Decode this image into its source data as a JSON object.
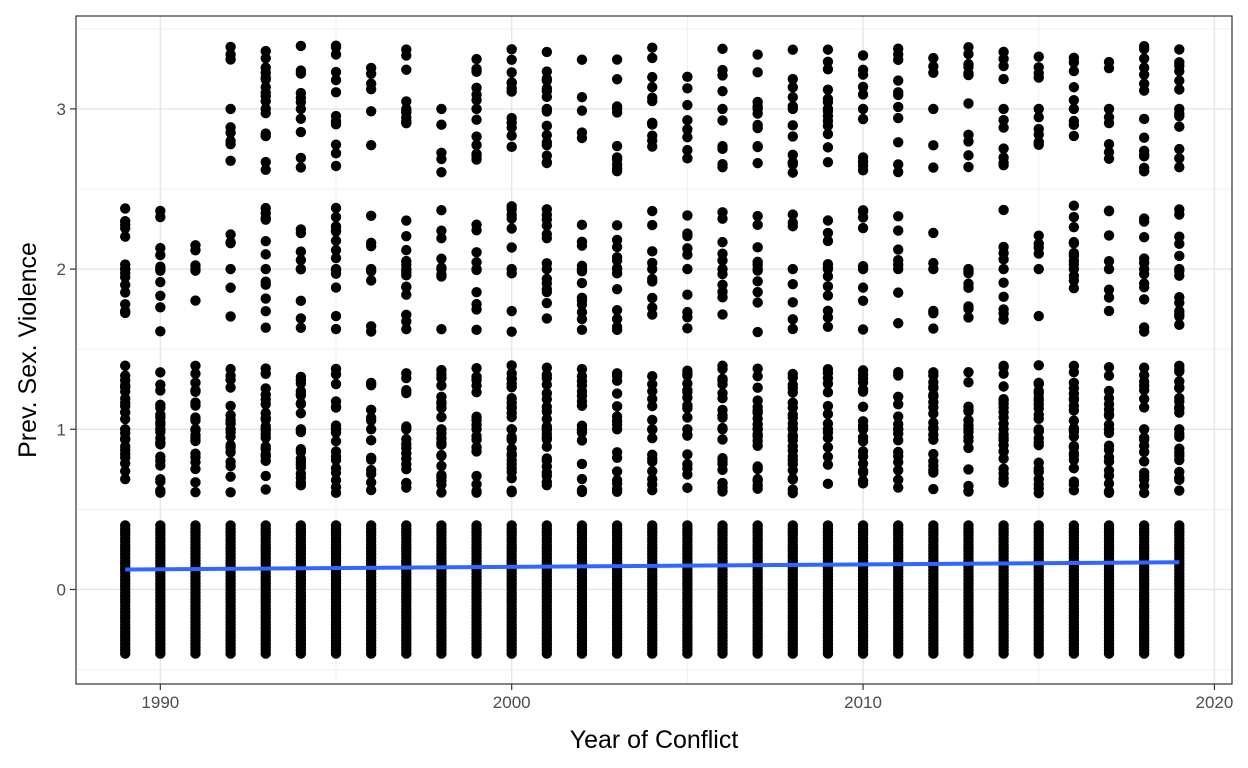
{
  "chart_data": {
    "type": "scatter",
    "title": "",
    "xlabel": "Year of Conflict",
    "ylabel": "Prev. Sex. Violence",
    "xlim": [
      1987.6,
      2020.5
    ],
    "ylim": [
      -0.59,
      3.58
    ],
    "x_ticks": [
      1990,
      2000,
      2010,
      2020
    ],
    "x_tick_labels": [
      "1990",
      "2000",
      "2010",
      "2020"
    ],
    "y_ticks": [
      0,
      1,
      2,
      3
    ],
    "y_tick_labels": [
      "0",
      "1",
      "2",
      "3"
    ],
    "grid": true,
    "years": [
      1989,
      1990,
      1991,
      1992,
      1993,
      1994,
      1995,
      1996,
      1997,
      1998,
      1999,
      2000,
      2001,
      2002,
      2003,
      2004,
      2005,
      2006,
      2007,
      2008,
      2009,
      2010,
      2011,
      2012,
      2013,
      2014,
      2015,
      2016,
      2017,
      2018,
      2019
    ],
    "clusters": [
      {
        "center": 0,
        "min": -0.4,
        "max": 0.4,
        "description": "dense band of points at every year"
      },
      {
        "center": 1,
        "min": 0.6,
        "max": 1.4,
        "description": "points at every year"
      },
      {
        "center": 2,
        "min": 1.6,
        "max": 2.4,
        "description": "points at every year"
      },
      {
        "center": 3,
        "min": 2.6,
        "max": 3.4,
        "description": "points in most years; none in 1989, 1990, 1991"
      }
    ],
    "series": [
      {
        "values_start": {
          "x": 1989,
          "y": 0.125
        },
        "values_end": {
          "x": 2019,
          "y": 0.17
        },
        "color": "#3366ff",
        "type": "trend-line"
      }
    ],
    "point_color": "#000000",
    "trend_color": "#3366ff"
  }
}
